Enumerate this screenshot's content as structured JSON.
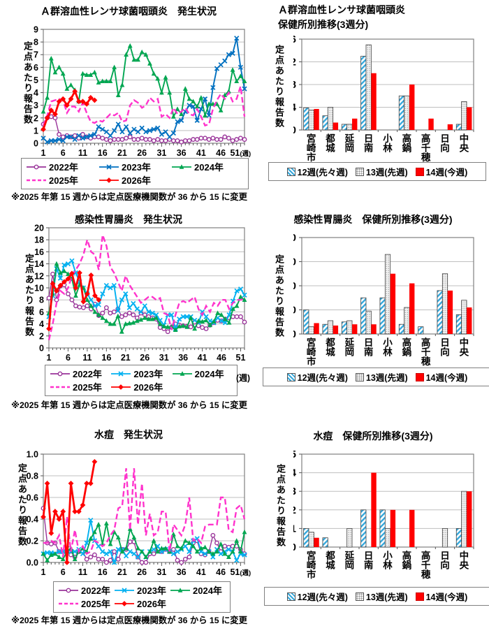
{
  "chart_data": [
    {
      "type": "line",
      "title": "Ａ群溶血性レンサ球菌咽頭炎　発生状況",
      "ylabel": "定点あたり報告数",
      "ylim": [
        0,
        9
      ],
      "ytick_step": 1,
      "y_decimals": 0,
      "weeks": 52,
      "xticks": [
        1,
        6,
        11,
        16,
        21,
        26,
        31,
        36,
        41,
        46,
        51
      ],
      "week_unit": "(週)",
      "week_unit_on_axis": true,
      "note": "※2025 年第 15 週からは定点医療機関数が 36 から 15 に変更",
      "grid": true,
      "legend_position": "bottom",
      "series": [
        {
          "name": "2022年",
          "color": "#993399",
          "marker": "circle",
          "dash": false,
          "values": [
            1.5,
            2.0,
            2.1,
            2.0,
            0.7,
            0.5,
            0.6,
            0.5,
            0.6,
            0.4,
            0.7,
            0.5,
            0.4,
            0.5,
            0.5,
            0.4,
            0.3,
            0.2,
            0.3,
            0.3,
            0.3,
            0.4,
            0.5,
            0.3,
            0.3,
            0.4,
            0.3,
            0.3,
            0.2,
            0.3,
            0.2,
            0.2,
            0.3,
            0.2,
            0.2,
            0.1,
            0.2,
            0.2,
            0.3,
            0.3,
            0.4,
            0.4,
            0.3,
            0.4,
            0.3,
            0.3,
            0.5,
            0.4,
            0.2,
            0.3,
            0.4,
            0.3
          ]
        },
        {
          "name": "2023年",
          "color": "#0070C0",
          "marker": "x",
          "dash": false,
          "values": [
            0.4,
            0.1,
            0.2,
            0.2,
            0.3,
            0.2,
            0.5,
            0.5,
            0.3,
            0.6,
            0.4,
            0.5,
            0.6,
            0.7,
            1.3,
            1.1,
            0.9,
            0.6,
            1.0,
            1.5,
            0.9,
            1.3,
            0.8,
            1.1,
            0.9,
            1.2,
            0.9,
            1.0,
            1.1,
            1.2,
            0.7,
            0.9,
            0.5,
            0.8,
            1.7,
            1.8,
            2.5,
            3.0,
            2.9,
            1.8,
            2.7,
            3.5,
            2.2,
            4.4,
            5.9,
            6.2,
            6.5,
            7.0,
            7.1,
            8.3,
            6.0,
            4.3
          ]
        },
        {
          "name": "2024年",
          "color": "#00A651",
          "marker": "triangle",
          "dash": false,
          "values": [
            2.5,
            3.6,
            6.7,
            5.6,
            6.0,
            5.5,
            4.3,
            4.6,
            4.2,
            3.3,
            5.5,
            5.4,
            5.4,
            5.6,
            4.8,
            4.9,
            4.9,
            4.9,
            6.0,
            3.8,
            4.6,
            7.0,
            7.7,
            6.6,
            6.6,
            7.2,
            7.0,
            6.3,
            5.5,
            5.1,
            4.0,
            5.2,
            4.0,
            2.1,
            2.7,
            2.3,
            4.3,
            3.5,
            3.3,
            2.9,
            3.6,
            2.2,
            3.1,
            3.1,
            3.1,
            2.6,
            3.8,
            4.1,
            5.8,
            4.9,
            5.3,
            4.9
          ]
        },
        {
          "name": "2025年",
          "color": "#FF33CC",
          "marker": "none",
          "dash": true,
          "values": [
            1.4,
            2.2,
            3.3,
            3.4,
            3.5,
            3.4,
            2.4,
            2.9,
            2.9,
            2.5,
            3.2,
            2.4,
            1.7,
            1.6,
            1.8,
            1.7,
            2.0,
            2.3,
            2.2,
            2.4,
            1.7,
            1.8,
            3.0,
            3.4,
            3.2,
            2.8,
            3.0,
            3.6,
            3.3,
            3.5,
            2.1,
            2.3,
            2.0,
            2.8,
            2.3,
            2.5,
            2.8,
            2.3,
            2.2,
            2.7,
            2.1,
            1.4,
            1.5,
            2.7,
            3.4,
            3.9,
            3.5,
            4.0,
            3.3,
            3.5,
            4.5,
            2.1
          ]
        },
        {
          "name": "2026年",
          "color": "#FF0000",
          "marker": "diamond",
          "dash": false,
          "values": [
            1.1,
            2.0,
            2.6,
            2.3,
            3.3,
            3.5,
            3.0,
            3.5,
            4.1,
            3.3,
            3.3,
            3.1,
            3.6,
            3.4
          ]
        }
      ]
    },
    {
      "type": "bar",
      "title": "Ａ群溶血性レンサ球菌咽頭炎\n保健所別推移(3週分)",
      "ylabel": "定点あたり報告数",
      "ylim": [
        0,
        16
      ],
      "ytick_step": 4,
      "categories": [
        "宮崎市",
        "都城",
        "延岡",
        "日南",
        "小林",
        "高鍋",
        "高千穂",
        "日向",
        "中央"
      ],
      "grid": true,
      "legend_position": "bottom",
      "series": [
        {
          "name": "12週(先々週)",
          "style": "hatch",
          "color": "#35A8DC",
          "values": [
            3.9,
            2.5,
            1.0,
            13,
            0,
            6,
            0,
            0,
            1
          ]
        },
        {
          "name": "13週(先週)",
          "style": "dots",
          "color": "#E8E8E8",
          "values": [
            3.5,
            4.0,
            1.0,
            15,
            0,
            6,
            0,
            0,
            5
          ]
        },
        {
          "name": "14週(今週)",
          "style": "solid",
          "color": "#FF0000",
          "values": [
            3.7,
            1.3,
            2.0,
            10,
            0,
            8,
            2,
            1,
            4
          ]
        }
      ]
    },
    {
      "type": "line",
      "title": "感染性胃腸炎　発生状況",
      "ylabel": "定点あたり報告数",
      "ylim": [
        0,
        20
      ],
      "ytick_step": 2,
      "y_decimals": 0,
      "weeks": 52,
      "xticks": [
        1,
        6,
        11,
        16,
        21,
        26,
        31,
        36,
        41,
        46,
        51
      ],
      "week_unit": "(週)",
      "week_unit_on_axis": false,
      "note": "※2025 年第 15 週からは定点医療機関数が 36 から 15 に変更",
      "grid": true,
      "legend_position": "bottom",
      "series": [
        {
          "name": "2022年",
          "color": "#993399",
          "marker": "circle",
          "dash": false,
          "values": [
            8.3,
            12.3,
            8.0,
            10.3,
            10.5,
            9.0,
            8.0,
            7.0,
            6.8,
            6.7,
            7.0,
            6.5,
            7.3,
            5.4,
            5.8,
            6.7,
            5.8,
            6.0,
            6.5,
            5.2,
            5.5,
            5.8,
            5.5,
            5.0,
            5.8,
            5.5,
            5.2,
            5.0,
            4.8,
            3.4,
            3.2,
            2.7,
            3.5,
            4.0,
            3.8,
            3.7,
            3.6,
            3.5,
            4.3,
            3.7,
            3.4,
            3.2,
            3.8,
            4.2,
            4.6,
            4.5,
            4.8,
            5.0,
            5.2,
            5.2,
            5.2,
            4.3
          ]
        },
        {
          "name": "2023年",
          "color": "#00B0F0",
          "marker": "x",
          "dash": false,
          "values": [
            5.2,
            8.7,
            13.2,
            11.6,
            13.8,
            14.0,
            14.5,
            12.5,
            11.0,
            10.0,
            9.0,
            8.0,
            7.0,
            7.2,
            9.0,
            10.4,
            10.0,
            10.4,
            6.2,
            8.0,
            9.0,
            6.7,
            7.4,
            6.5,
            6.0,
            7.0,
            6.0,
            5.8,
            5.5,
            4.6,
            3.8,
            5.5,
            5.5,
            3.2,
            4.8,
            5.2,
            5.2,
            5.2,
            4.6,
            4.2,
            6.0,
            5.2,
            4.5,
            4.2,
            5.0,
            4.5,
            4.2,
            5.5,
            7.8,
            9.5,
            9.8,
            8.8
          ]
        },
        {
          "name": "2024年",
          "color": "#00A651",
          "marker": "triangle",
          "dash": false,
          "values": [
            5.8,
            9.0,
            14.0,
            12.5,
            12.8,
            12.3,
            11.5,
            8.7,
            10.5,
            10.0,
            8.0,
            7.0,
            6.0,
            5.5,
            5.0,
            4.5,
            4.0,
            4.0,
            5.3,
            2.7,
            4.0,
            4.1,
            4.2,
            4.5,
            4.7,
            5.0,
            4.8,
            4.8,
            5.0,
            4.0,
            3.6,
            3.5,
            3.5,
            3.0,
            3.6,
            3.7,
            3.5,
            5.0,
            3.2,
            4.5,
            4.4,
            4.6,
            3.8,
            4.4,
            5.8,
            5.5,
            4.8,
            4.2,
            6.5,
            7.0,
            8.5,
            8.0
          ]
        },
        {
          "name": "2025年",
          "color": "#FF33CC",
          "marker": "none",
          "dash": true,
          "values": [
            1.3,
            4.0,
            7.5,
            9.5,
            9.0,
            10.0,
            12.0,
            13.0,
            14.0,
            15.5,
            18.0,
            16.0,
            15.5,
            13.0,
            18.8,
            17.0,
            13.5,
            12.5,
            11.0,
            9.5,
            12.0,
            10.5,
            9.5,
            8.5,
            7.5,
            8.0,
            8.5,
            8.5,
            8.0,
            8.3,
            5.8,
            5.5,
            3.0,
            5.5,
            7.5,
            7.8,
            7.5,
            8.0,
            8.5,
            6.5,
            5.5,
            7.0,
            6.0,
            7.5,
            7.0,
            8.0,
            8.0,
            6.5,
            7.5,
            8.0,
            8.0,
            8.2
          ]
        },
        {
          "name": "2026年",
          "color": "#FF0000",
          "marker": "diamond",
          "dash": false,
          "values": [
            3.2,
            10.7,
            9.5,
            10.4,
            11.0,
            11.5,
            12.4,
            10.0,
            12.5,
            7.7,
            9.0,
            12.1,
            8.7,
            8.0
          ]
        }
      ]
    },
    {
      "type": "bar",
      "title": "感染性胃腸炎　保健所別推移(3週分)",
      "ylabel": "定点あたり報告数",
      "ylim": [
        0,
        40
      ],
      "ytick_step": 10,
      "categories": [
        "宮崎市",
        "都城",
        "延岡",
        "日南",
        "小林",
        "高鍋",
        "高千穂",
        "日向",
        "中央"
      ],
      "grid": true,
      "legend_position": "bottom",
      "series": [
        {
          "name": "12週(先々週)",
          "style": "hatch",
          "color": "#35A8DC",
          "values": [
            10,
            4,
            5,
            15,
            15,
            4,
            3,
            18,
            8
          ]
        },
        {
          "name": "13週(先週)",
          "style": "dots",
          "color": "#E8E8E8",
          "values": [
            3,
            5.5,
            5.5,
            9.5,
            33,
            11,
            0,
            25,
            14
          ]
        },
        {
          "name": "14週(今週)",
          "style": "solid",
          "color": "#FF0000",
          "values": [
            4.5,
            3.5,
            4,
            4,
            25,
            21,
            0,
            18,
            11
          ]
        }
      ]
    },
    {
      "type": "line",
      "title": "水痘　発生状況",
      "ylabel": "定点あたり報告数",
      "ylim": [
        0,
        1.0
      ],
      "ytick_step": 0.2,
      "y_decimals": 1,
      "weeks": 52,
      "xticks": [
        1,
        6,
        11,
        16,
        21,
        26,
        31,
        36,
        41,
        46,
        51
      ],
      "week_unit": "(週)",
      "week_unit_on_axis": true,
      "note": "※2025 年第 15 週からは定点医療機関数が 36 から 15 に変更",
      "grid": true,
      "legend_position": "bottom",
      "series": [
        {
          "name": "2022年",
          "color": "#993399",
          "marker": "circle",
          "dash": false,
          "values": [
            0.5,
            0.18,
            0.17,
            0.18,
            0.1,
            0.1,
            0.1,
            0.07,
            0.05,
            0.1,
            0.1,
            0.03,
            0.05,
            0.07,
            0.03,
            0.03,
            0.0,
            0.02,
            0.1,
            0.03,
            0.12,
            0.12,
            0.19,
            0.19,
            0.05,
            0.0,
            0.0,
            0.08,
            0.08,
            0.12,
            0.1,
            0.12,
            0.1,
            0.12,
            0.02,
            0.0,
            0.03,
            0.05,
            0.18,
            0.2,
            0.08,
            0.07,
            0.1,
            0.25,
            0.18,
            0.1,
            0.15,
            0.14,
            0.15,
            0.15,
            0.12,
            0.08
          ]
        },
        {
          "name": "2023年",
          "color": "#00B0F0",
          "marker": "x",
          "dash": false,
          "values": [
            0.08,
            0.09,
            0.09,
            0.08,
            0.1,
            0.1,
            0.13,
            0.1,
            0.1,
            0.12,
            0.08,
            0.18,
            0.39,
            0.2,
            0.15,
            0.1,
            0.08,
            0.1,
            0.0,
            0.12,
            0.12,
            0.06,
            0.1,
            0.08,
            0.05,
            0.1,
            0.05,
            0.1,
            0.12,
            0.15,
            0.1,
            0.12,
            0.1,
            0.08,
            0.1,
            0.12,
            0.15,
            0.1,
            0.2,
            0.22,
            0.1,
            0.08,
            0.1,
            0.05,
            0.12,
            0.08,
            0.1,
            0.12,
            0.1,
            0.02,
            0.08,
            0.07
          ]
        },
        {
          "name": "2024年",
          "color": "#00A651",
          "marker": "triangle",
          "dash": false,
          "values": [
            0.08,
            0.02,
            0.07,
            0.08,
            0.05,
            0.03,
            0.1,
            0.13,
            0.03,
            0.1,
            0.13,
            0.1,
            0.22,
            0.28,
            0.35,
            0.17,
            0.36,
            0.17,
            0.28,
            0.23,
            0.1,
            0.13,
            0.31,
            0.23,
            0.13,
            0.1,
            0.05,
            0.1,
            0.2,
            0.1,
            0.13,
            0.13,
            0.1,
            0.26,
            0.15,
            0.13,
            0.2,
            0.18,
            0.15,
            0.1,
            0.13,
            0.14,
            0.1,
            0.08,
            0.1,
            0.17,
            0.08,
            0.05,
            0.1,
            0.2,
            0.1,
            0.28
          ]
        },
        {
          "name": "2025年",
          "color": "#FF33CC",
          "marker": "none",
          "dash": true,
          "values": [
            0.18,
            0.18,
            0.2,
            0.18,
            0.25,
            0.05,
            0.42,
            0.1,
            0.3,
            0.1,
            0.15,
            0.08,
            0.1,
            0.2,
            0.18,
            0.15,
            0.18,
            0.25,
            0.3,
            0.5,
            0.52,
            0.87,
            0.3,
            0.87,
            0.35,
            0.73,
            0.25,
            0.45,
            0.25,
            0.28,
            0.47,
            0.47,
            0.1,
            0.35,
            0.3,
            0.25,
            0.35,
            0.6,
            0.2,
            0.22,
            0.18,
            0.33,
            0.35,
            0.35,
            0.35,
            0.6,
            0.6,
            0.3,
            0.28,
            0.5,
            0.53,
            0.4
          ]
        },
        {
          "name": "2026年",
          "color": "#FF0000",
          "marker": "diamond",
          "dash": false,
          "values": [
            0.42,
            0.73,
            0.27,
            0.47,
            0.4,
            0.47,
            0.0,
            0.73,
            0.47,
            0.47,
            0.53,
            0.73,
            0.73,
            0.93
          ]
        }
      ]
    },
    {
      "type": "bar",
      "title": "水痘　保健所別推移(3週分)",
      "ylabel": "定点あたり報告数",
      "ylim": [
        0,
        5
      ],
      "ytick_step": 1,
      "categories": [
        "宮崎市",
        "都城",
        "延岡",
        "日南",
        "小林",
        "高鍋",
        "高千穂",
        "日向",
        "中央"
      ],
      "grid": true,
      "legend_position": "bottom",
      "series": [
        {
          "name": "12週(先々週)",
          "style": "hatch",
          "color": "#35A8DC",
          "values": [
            1,
            0.5,
            0,
            2,
            2,
            0,
            0,
            0,
            1
          ]
        },
        {
          "name": "13週(先週)",
          "style": "dots",
          "color": "#E8E8E8",
          "values": [
            0.8,
            0,
            1,
            0,
            1,
            0,
            0,
            1,
            3
          ]
        },
        {
          "name": "14週(今週)",
          "style": "solid",
          "color": "#FF0000",
          "values": [
            0.5,
            0,
            0,
            4,
            2,
            2,
            0,
            0,
            3
          ]
        }
      ]
    }
  ],
  "palette": {
    "grid": "#BFBFBF",
    "plot_border": "#808080",
    "hatch_blue": "#35A8DC",
    "bar_red": "#FF0000",
    "text": "#000000"
  }
}
